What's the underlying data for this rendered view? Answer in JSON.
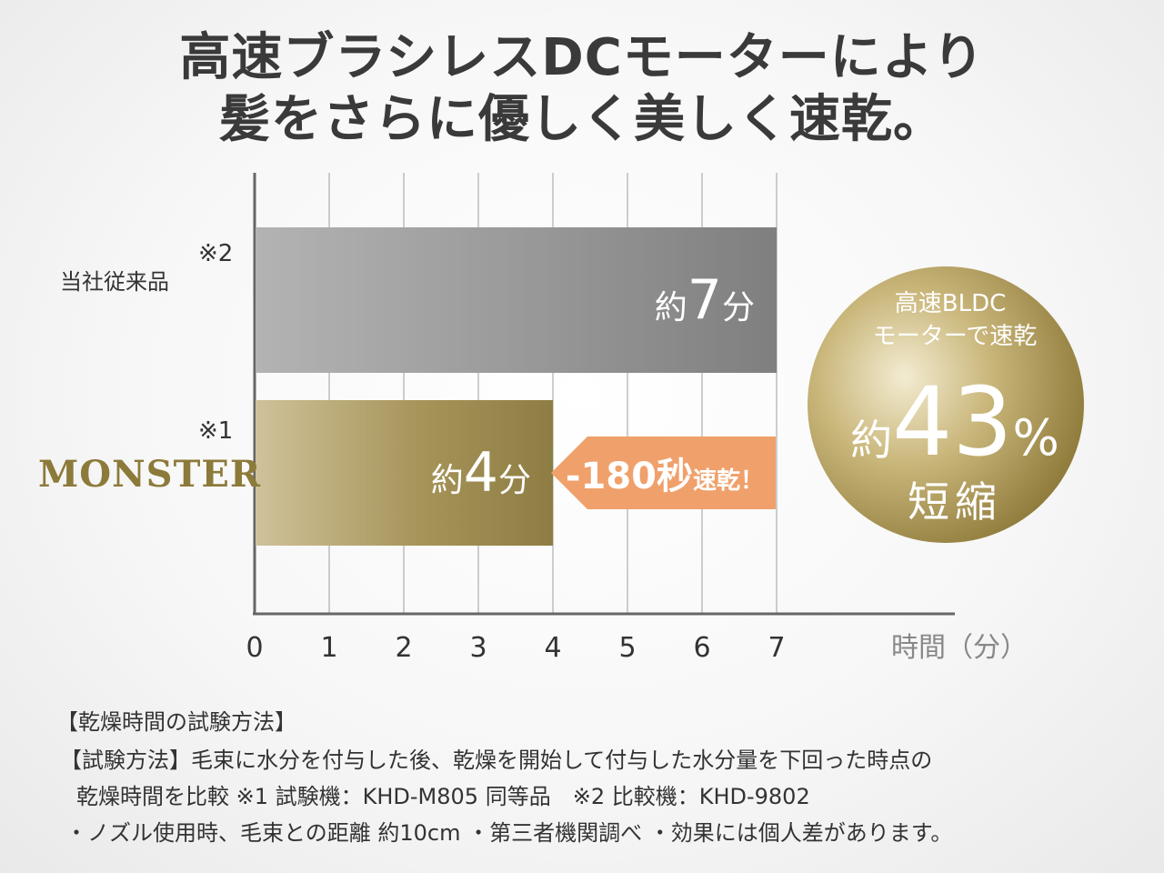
{
  "headline": {
    "line1": "高速ブラシレスDCモーターにより",
    "line2": "髪をさらに優しく美しく速乾。"
  },
  "chart_data": {
    "type": "bar",
    "orientation": "horizontal",
    "categories": [
      "当社従来品",
      "MONSTER"
    ],
    "category_notes": [
      "※2",
      "※1"
    ],
    "values": [
      7,
      4
    ],
    "value_labels": [
      {
        "prefix": "約",
        "number": "7",
        "suffix": "分"
      },
      {
        "prefix": "約",
        "number": "4",
        "suffix": "分"
      }
    ],
    "x_ticks": [
      "0",
      "1",
      "2",
      "3",
      "4",
      "5",
      "6",
      "7"
    ],
    "xlabel": "時間（分）",
    "xlim": [
      0,
      9
    ],
    "grid": true,
    "colors": {
      "conventional": "#8d8d8d",
      "monster": "#a08f52",
      "arrow": "#f0a06a"
    },
    "annotation": {
      "number": "-180秒",
      "suffix": "速乾！"
    },
    "badge": {
      "line1": "高速BLDC",
      "line2": "モーターで速乾",
      "prefix": "約",
      "number": "43",
      "percent": "%",
      "line4": "短縮"
    }
  },
  "footnotes": {
    "title": "【乾燥時間の試験方法】",
    "line1": "【試験方法】毛束に水分を付与した後、乾燥を開始して付与した水分量を下回った時点の",
    "line2": "乾燥時間を比較 ※1 試験機：KHD-M805 同等品　※2 比較機：KHD-9802",
    "line3": "・ノズル使用時、毛束との距離 約10cm ・第三者機関調べ ・効果には個人差があります。"
  }
}
